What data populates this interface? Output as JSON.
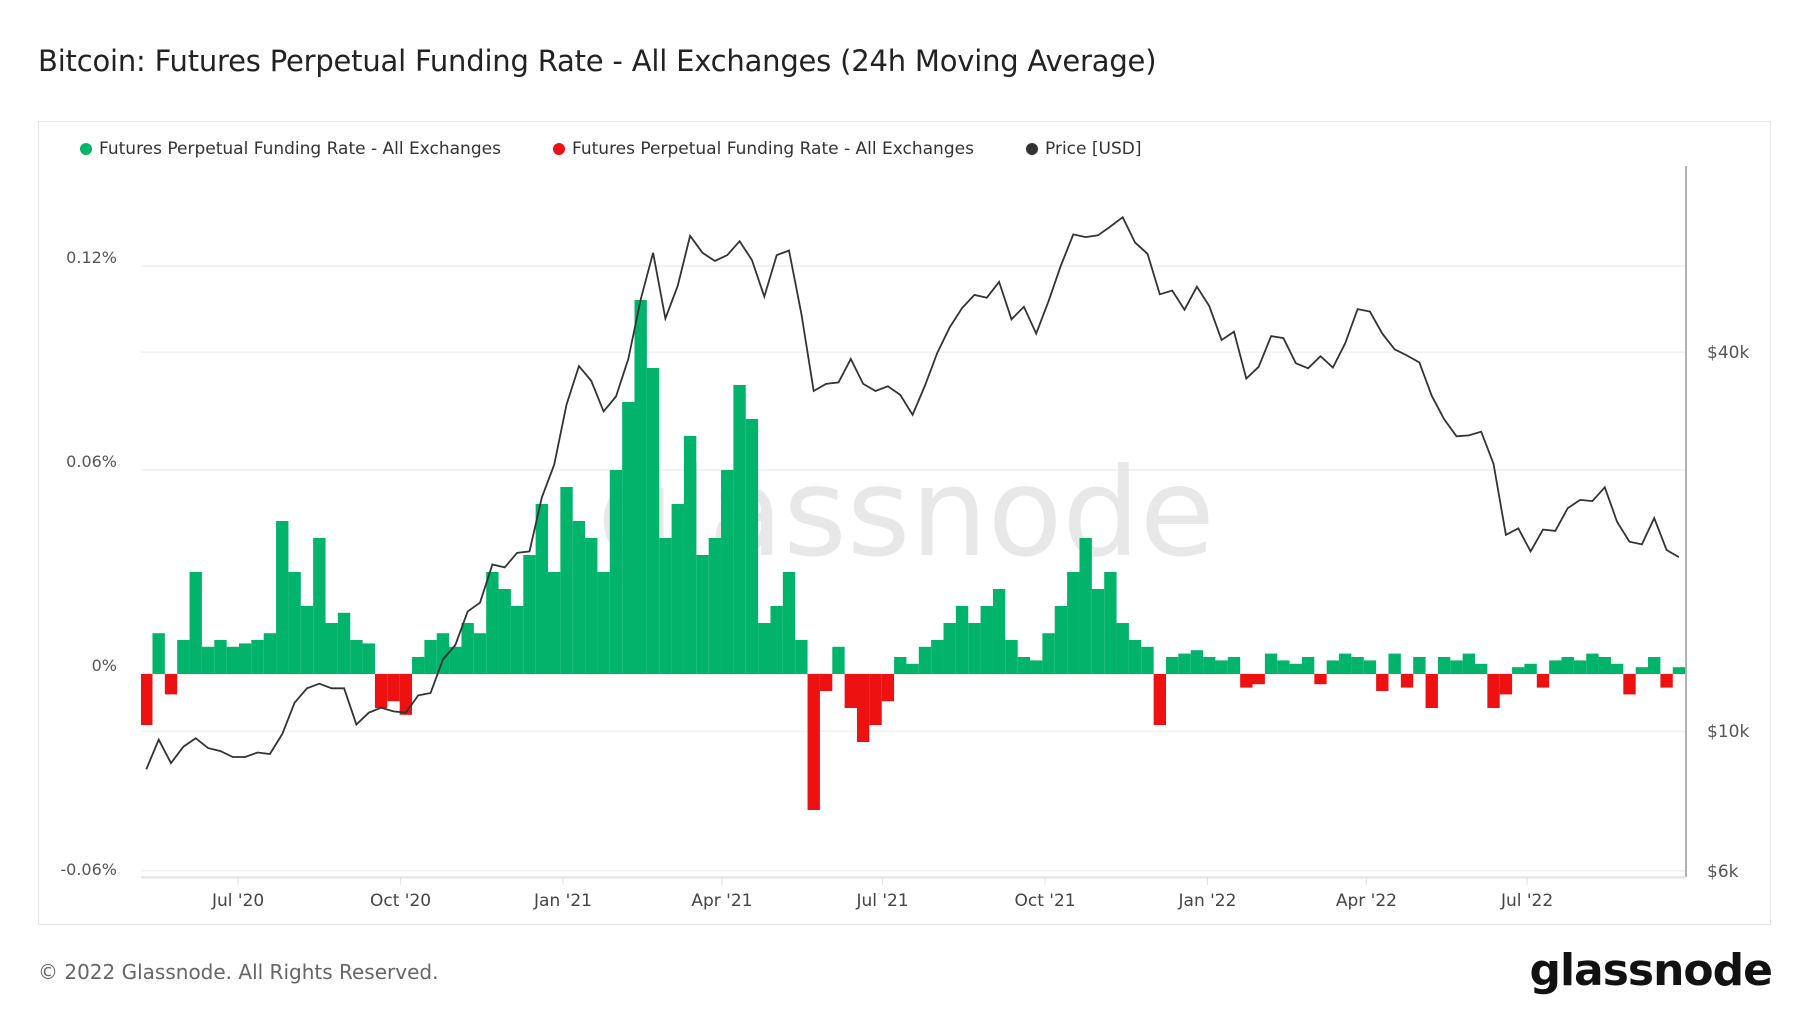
{
  "title": "Bitcoin: Futures Perpetual Funding Rate - All Exchanges (24h Moving Average)",
  "footer": "© 2022 Glassnode. All Rights Reserved.",
  "logo": "glassnode",
  "watermark": "glassnode",
  "legend": [
    {
      "label": "Futures Perpetual Funding Rate - All Exchanges",
      "color": "#02b36b"
    },
    {
      "label": "Futures Perpetual Funding Rate - All Exchanges",
      "color": "#ee1111"
    },
    {
      "label": "Price [USD]",
      "color": "#333333"
    }
  ],
  "chart_data": {
    "type": "bar+line",
    "title": "Bitcoin: Futures Perpetual Funding Rate - All Exchanges (24h Moving Average)",
    "x_range": [
      "2020-05-07",
      "2022-09-29"
    ],
    "x_ticks": [
      "Jul '20",
      "Oct '20",
      "Jan '21",
      "Apr '21",
      "Jul '21",
      "Oct '21",
      "Jan '22",
      "Apr '22",
      "Jul '22"
    ],
    "x_tick_dates": [
      "2020-07-01",
      "2020-10-01",
      "2021-01-01",
      "2021-04-01",
      "2021-07-01",
      "2021-10-01",
      "2022-01-01",
      "2022-04-01",
      "2022-07-01"
    ],
    "left_axis": {
      "unit": "%",
      "ylim": [
        -0.06,
        0.12
      ],
      "ticks": [
        "0.12%",
        "0.06%",
        "0%",
        "-0.06%"
      ],
      "tick_values": [
        0.12,
        0.06,
        0,
        -0.06
      ]
    },
    "right_axis": {
      "scale": "log",
      "ticks": [
        "$40k",
        "$10k",
        "$6k"
      ],
      "tick_values": [
        40000,
        10000,
        6000
      ]
    },
    "grid": true,
    "legend_position": "top-left",
    "positive_color": "#02b36b",
    "negative_color": "#ee1111",
    "price_color": "#333333",
    "week_start": "2020-05-10",
    "funding_rate_pct": [
      -0.015,
      0.012,
      -0.006,
      0.01,
      0.03,
      0.008,
      0.01,
      0.008,
      0.009,
      0.01,
      0.012,
      0.045,
      0.03,
      0.02,
      0.04,
      0.015,
      0.018,
      0.01,
      0.009,
      -0.01,
      -0.008,
      -0.012,
      0.005,
      0.01,
      0.012,
      0.008,
      0.015,
      0.012,
      0.03,
      0.025,
      0.02,
      0.035,
      0.05,
      0.03,
      0.055,
      0.045,
      0.04,
      0.03,
      0.06,
      0.08,
      0.11,
      0.09,
      0.04,
      0.05,
      0.07,
      0.035,
      0.04,
      0.06,
      0.085,
      0.075,
      0.015,
      0.02,
      0.03,
      0.01,
      -0.04,
      -0.005,
      0.008,
      -0.01,
      -0.02,
      -0.015,
      -0.008,
      0.005,
      0.003,
      0.008,
      0.01,
      0.015,
      0.02,
      0.015,
      0.02,
      0.025,
      0.01,
      0.005,
      0.004,
      0.012,
      0.02,
      0.03,
      0.04,
      0.025,
      0.03,
      0.015,
      0.01,
      0.008,
      -0.015,
      0.005,
      0.006,
      0.007,
      0.005,
      0.004,
      0.005,
      -0.004,
      -0.003,
      0.006,
      0.004,
      0.003,
      0.005,
      -0.003,
      0.004,
      0.006,
      0.005,
      0.004,
      -0.005,
      0.006,
      -0.004,
      0.005,
      -0.01,
      0.005,
      0.004,
      0.006,
      0.003,
      -0.01,
      -0.006,
      0.002,
      0.003,
      -0.004,
      0.004,
      0.005,
      0.004,
      0.006,
      0.005,
      0.003,
      -0.006,
      0.002,
      0.005,
      -0.004,
      0.002
    ],
    "price_usd": [
      8700,
      9700,
      8900,
      9450,
      9750,
      9400,
      9300,
      9100,
      9100,
      9250,
      9200,
      9900,
      11100,
      11700,
      11900,
      11700,
      11700,
      10250,
      10700,
      10900,
      10750,
      10700,
      11400,
      11500,
      13000,
      13700,
      15500,
      16000,
      18400,
      18200,
      19200,
      19300,
      23500,
      26500,
      33000,
      38000,
      36000,
      32200,
      34000,
      39000,
      48500,
      57500,
      45200,
      51000,
      61200,
      57500,
      55800,
      57000,
      60000,
      56000,
      49000,
      57000,
      58000,
      46000,
      34700,
      35600,
      35800,
      39000,
      35600,
      34700,
      35300,
      34200,
      31800,
      35400,
      39900,
      43800,
      47000,
      49300,
      48800,
      51700,
      45100,
      47200,
      42800,
      48200,
      54900,
      61500,
      60900,
      61300,
      63300,
      65500,
      59700,
      57300,
      49400,
      50100,
      46700,
      50800,
      47300,
      41800,
      43100,
      36300,
      37900,
      42400,
      42100,
      38400,
      37700,
      39400,
      37800,
      41300,
      46800,
      46400,
      42800,
      40400,
      39500,
      38500,
      34100,
      31300,
      29400,
      29500,
      29900,
      26600,
      20500,
      21000,
      19300,
      20900,
      20800,
      22600,
      23300,
      23200,
      24400,
      21500,
      20000,
      19800,
      21800,
      19400,
      18900
    ]
  }
}
